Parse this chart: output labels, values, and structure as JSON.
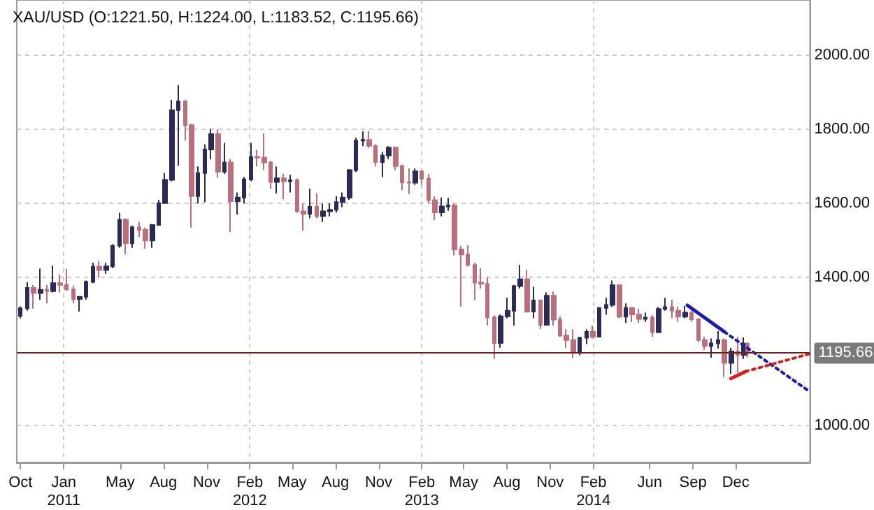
{
  "chart_data": {
    "type": "candlestick",
    "title": "XAU/USD (O:1221.50, H:1224.00, L:1183.52, C:1195.66)",
    "x": [
      "2010-10-01",
      "2010-10-15",
      "2010-10-29",
      "2010-11-12",
      "2010-11-26",
      "2010-12-10",
      "2010-12-24",
      "2011-01-07",
      "2011-01-21",
      "2011-02-04",
      "2011-02-18",
      "2011-03-04",
      "2011-03-18",
      "2011-04-01",
      "2011-04-15",
      "2011-04-29",
      "2011-05-13",
      "2011-05-27",
      "2011-06-10",
      "2011-06-24",
      "2011-07-08",
      "2011-07-22",
      "2011-08-05",
      "2011-08-19",
      "2011-09-02",
      "2011-09-16",
      "2011-09-30",
      "2011-10-14",
      "2011-10-28",
      "2011-11-11",
      "2011-11-25",
      "2011-12-09",
      "2011-12-23",
      "2012-01-06",
      "2012-01-20",
      "2012-02-03",
      "2012-02-17",
      "2012-03-02",
      "2012-03-16",
      "2012-03-30",
      "2012-04-13",
      "2012-04-27",
      "2012-05-11",
      "2012-05-25",
      "2012-06-08",
      "2012-06-22",
      "2012-07-06",
      "2012-07-20",
      "2012-08-03",
      "2012-08-17",
      "2012-08-31",
      "2012-09-14",
      "2012-09-28",
      "2012-10-12",
      "2012-10-26",
      "2012-11-09",
      "2012-11-23",
      "2012-12-07",
      "2012-12-21",
      "2013-01-04",
      "2013-01-18",
      "2013-02-01",
      "2013-02-15",
      "2013-03-01",
      "2013-03-15",
      "2013-03-29",
      "2013-04-12",
      "2013-04-26",
      "2013-05-10",
      "2013-05-24",
      "2013-06-07",
      "2013-06-21",
      "2013-07-05",
      "2013-07-19",
      "2013-08-02",
      "2013-08-16",
      "2013-08-30",
      "2013-09-13",
      "2013-09-27",
      "2013-10-11",
      "2013-10-25",
      "2013-11-08",
      "2013-11-22",
      "2013-12-06",
      "2013-12-20",
      "2014-01-03",
      "2014-01-17",
      "2014-01-31",
      "2014-02-14",
      "2014-02-28",
      "2014-03-14",
      "2014-03-28",
      "2014-04-11",
      "2014-04-25",
      "2014-05-09",
      "2014-05-23",
      "2014-06-06",
      "2014-06-20",
      "2014-07-04",
      "2014-07-18",
      "2014-08-01",
      "2014-08-15",
      "2014-08-29",
      "2014-09-12",
      "2014-09-26",
      "2014-10-10",
      "2014-10-24",
      "2014-11-07",
      "2014-11-21",
      "2014-12-05",
      "2014-12-19",
      "2014-12-26"
    ],
    "ohlc": [
      [
        1296,
        1322,
        1290,
        1317
      ],
      [
        1317,
        1387,
        1310,
        1372
      ],
      [
        1372,
        1380,
        1316,
        1358
      ],
      [
        1358,
        1424,
        1340,
        1367
      ],
      [
        1367,
        1380,
        1330,
        1363
      ],
      [
        1363,
        1432,
        1360,
        1385
      ],
      [
        1385,
        1408,
        1360,
        1380
      ],
      [
        1380,
        1423,
        1364,
        1368
      ],
      [
        1368,
        1378,
        1330,
        1342
      ],
      [
        1342,
        1350,
        1308,
        1348
      ],
      [
        1348,
        1392,
        1340,
        1388
      ],
      [
        1388,
        1440,
        1385,
        1429
      ],
      [
        1429,
        1445,
        1400,
        1420
      ],
      [
        1420,
        1440,
        1410,
        1430
      ],
      [
        1430,
        1490,
        1425,
        1486
      ],
      [
        1486,
        1575,
        1480,
        1556
      ],
      [
        1556,
        1560,
        1462,
        1493
      ],
      [
        1493,
        1540,
        1480,
        1536
      ],
      [
        1536,
        1550,
        1510,
        1529
      ],
      [
        1529,
        1535,
        1478,
        1500
      ],
      [
        1500,
        1545,
        1480,
        1542
      ],
      [
        1542,
        1610,
        1540,
        1601
      ],
      [
        1601,
        1682,
        1600,
        1664
      ],
      [
        1664,
        1880,
        1660,
        1852
      ],
      [
        1852,
        1920,
        1702,
        1876
      ],
      [
        1876,
        1880,
        1770,
        1812
      ],
      [
        1812,
        1815,
        1535,
        1620
      ],
      [
        1620,
        1700,
        1600,
        1682
      ],
      [
        1682,
        1760,
        1604,
        1746
      ],
      [
        1746,
        1802,
        1720,
        1788
      ],
      [
        1788,
        1800,
        1670,
        1686
      ],
      [
        1686,
        1764,
        1680,
        1711
      ],
      [
        1711,
        1720,
        1523,
        1606
      ],
      [
        1606,
        1630,
        1570,
        1616
      ],
      [
        1616,
        1672,
        1600,
        1665
      ],
      [
        1665,
        1764,
        1660,
        1726
      ],
      [
        1726,
        1745,
        1700,
        1724
      ],
      [
        1724,
        1790,
        1690,
        1711
      ],
      [
        1711,
        1715,
        1640,
        1658
      ],
      [
        1658,
        1700,
        1627,
        1668
      ],
      [
        1668,
        1680,
        1612,
        1660
      ],
      [
        1660,
        1678,
        1630,
        1663
      ],
      [
        1663,
        1668,
        1575,
        1579
      ],
      [
        1579,
        1600,
        1527,
        1572
      ],
      [
        1572,
        1640,
        1560,
        1591
      ],
      [
        1591,
        1628,
        1560,
        1566
      ],
      [
        1566,
        1600,
        1550,
        1579
      ],
      [
        1579,
        1600,
        1565,
        1583
      ],
      [
        1583,
        1620,
        1575,
        1604
      ],
      [
        1604,
        1630,
        1590,
        1616
      ],
      [
        1616,
        1693,
        1610,
        1690
      ],
      [
        1690,
        1778,
        1685,
        1770
      ],
      [
        1770,
        1795,
        1755,
        1772
      ],
      [
        1772,
        1796,
        1750,
        1756
      ],
      [
        1756,
        1760,
        1700,
        1712
      ],
      [
        1712,
        1740,
        1672,
        1730
      ],
      [
        1730,
        1755,
        1720,
        1751
      ],
      [
        1751,
        1754,
        1690,
        1701
      ],
      [
        1701,
        1705,
        1636,
        1657
      ],
      [
        1657,
        1695,
        1625,
        1656
      ],
      [
        1656,
        1695,
        1650,
        1687
      ],
      [
        1687,
        1690,
        1650,
        1667
      ],
      [
        1667,
        1680,
        1600,
        1609
      ],
      [
        1609,
        1620,
        1555,
        1576
      ],
      [
        1576,
        1616,
        1565,
        1592
      ],
      [
        1592,
        1615,
        1580,
        1595
      ],
      [
        1595,
        1600,
        1460,
        1476
      ],
      [
        1476,
        1486,
        1321,
        1462
      ],
      [
        1462,
        1487,
        1430,
        1434
      ],
      [
        1434,
        1440,
        1338,
        1386
      ],
      [
        1386,
        1425,
        1370,
        1383
      ],
      [
        1383,
        1400,
        1270,
        1292
      ],
      [
        1292,
        1298,
        1180,
        1223
      ],
      [
        1223,
        1300,
        1210,
        1295
      ],
      [
        1295,
        1345,
        1290,
        1310
      ],
      [
        1310,
        1380,
        1270,
        1377
      ],
      [
        1377,
        1434,
        1370,
        1395
      ],
      [
        1395,
        1420,
        1305,
        1308
      ],
      [
        1308,
        1375,
        1290,
        1338
      ],
      [
        1338,
        1340,
        1260,
        1272
      ],
      [
        1272,
        1360,
        1270,
        1351
      ],
      [
        1351,
        1362,
        1270,
        1286
      ],
      [
        1286,
        1295,
        1240,
        1243
      ],
      [
        1243,
        1260,
        1210,
        1231
      ],
      [
        1231,
        1260,
        1182,
        1196
      ],
      [
        1196,
        1240,
        1190,
        1237
      ],
      [
        1237,
        1260,
        1220,
        1253
      ],
      [
        1253,
        1270,
        1235,
        1240
      ],
      [
        1240,
        1320,
        1238,
        1318
      ],
      [
        1318,
        1345,
        1300,
        1326
      ],
      [
        1326,
        1392,
        1320,
        1379
      ],
      [
        1379,
        1380,
        1290,
        1294
      ],
      [
        1294,
        1330,
        1277,
        1318
      ],
      [
        1318,
        1320,
        1280,
        1300
      ],
      [
        1300,
        1316,
        1277,
        1288
      ],
      [
        1288,
        1305,
        1280,
        1292
      ],
      [
        1292,
        1298,
        1240,
        1252
      ],
      [
        1252,
        1320,
        1250,
        1315
      ],
      [
        1315,
        1345,
        1310,
        1320
      ],
      [
        1320,
        1340,
        1290,
        1310
      ],
      [
        1310,
        1321,
        1280,
        1294
      ],
      [
        1294,
        1323,
        1290,
        1305
      ],
      [
        1305,
        1310,
        1280,
        1287
      ],
      [
        1287,
        1290,
        1225,
        1231
      ],
      [
        1231,
        1240,
        1204,
        1215
      ],
      [
        1215,
        1235,
        1183,
        1222
      ],
      [
        1222,
        1255,
        1208,
        1231
      ],
      [
        1231,
        1235,
        1131,
        1169
      ],
      [
        1169,
        1210,
        1140,
        1200
      ],
      [
        1200,
        1240,
        1142,
        1191
      ],
      [
        1191,
        1238,
        1180,
        1221.5
      ],
      [
        1221.5,
        1224,
        1183.52,
        1195.66
      ]
    ],
    "series": [
      {
        "type": "line",
        "color": "#1c1ca8",
        "line_style": "solid",
        "x": [
          "2014-08-20",
          "2014-11-07"
        ],
        "values": [
          1325,
          1253
        ]
      },
      {
        "type": "line",
        "color": "#1c1ca8",
        "line_style": "dotted",
        "x": [
          "2014-11-07",
          "2015-05-08"
        ],
        "values": [
          1253,
          1091
        ]
      },
      {
        "type": "line",
        "color": "#d42020",
        "line_style": "solid",
        "x": [
          "2014-11-21",
          "2014-12-22"
        ],
        "values": [
          1127,
          1146
        ]
      },
      {
        "type": "line",
        "color": "#d42020",
        "line_style": "dotted",
        "x": [
          "2014-12-22",
          "2015-05-08"
        ],
        "values": [
          1146,
          1194
        ]
      }
    ],
    "xlim": [
      "2010-09-23",
      "2015-05-08"
    ],
    "xticks": [
      {
        "value": "2010-10-01",
        "label": "Oct"
      },
      {
        "value": "2011-01-01",
        "label": "Jan\n2011"
      },
      {
        "value": "2011-05-01",
        "label": "May"
      },
      {
        "value": "2011-08-01",
        "label": "Aug"
      },
      {
        "value": "2011-11-01",
        "label": "Nov"
      },
      {
        "value": "2012-02-01",
        "label": "Feb\n2012"
      },
      {
        "value": "2012-05-01",
        "label": "May"
      },
      {
        "value": "2012-08-01",
        "label": "Aug"
      },
      {
        "value": "2012-11-01",
        "label": "Nov"
      },
      {
        "value": "2013-02-01",
        "label": "Feb\n2013"
      },
      {
        "value": "2013-05-01",
        "label": "May"
      },
      {
        "value": "2013-08-01",
        "label": "Aug"
      },
      {
        "value": "2013-11-01",
        "label": "Nov"
      },
      {
        "value": "2014-02-01",
        "label": "Feb\n2014"
      },
      {
        "value": "2014-06-01",
        "label": "Jun"
      },
      {
        "value": "2014-09-01",
        "label": "Sep"
      },
      {
        "value": "2014-12-01",
        "label": "Dec"
      }
    ],
    "ylim": [
      900,
      2150
    ],
    "yticks": [
      {
        "value": 1000,
        "label": "1000.00"
      },
      {
        "value": 1400,
        "label": "1400.00"
      },
      {
        "value": 1600,
        "label": "1600.00"
      },
      {
        "value": 1800,
        "label": "1800.00"
      },
      {
        "value": 2000,
        "label": "2000.00"
      }
    ],
    "ref_lines": [
      {
        "axis": "y",
        "value": 1195.66,
        "label": "1195.66",
        "color": "#6b1f1f"
      }
    ],
    "grid": true
  }
}
